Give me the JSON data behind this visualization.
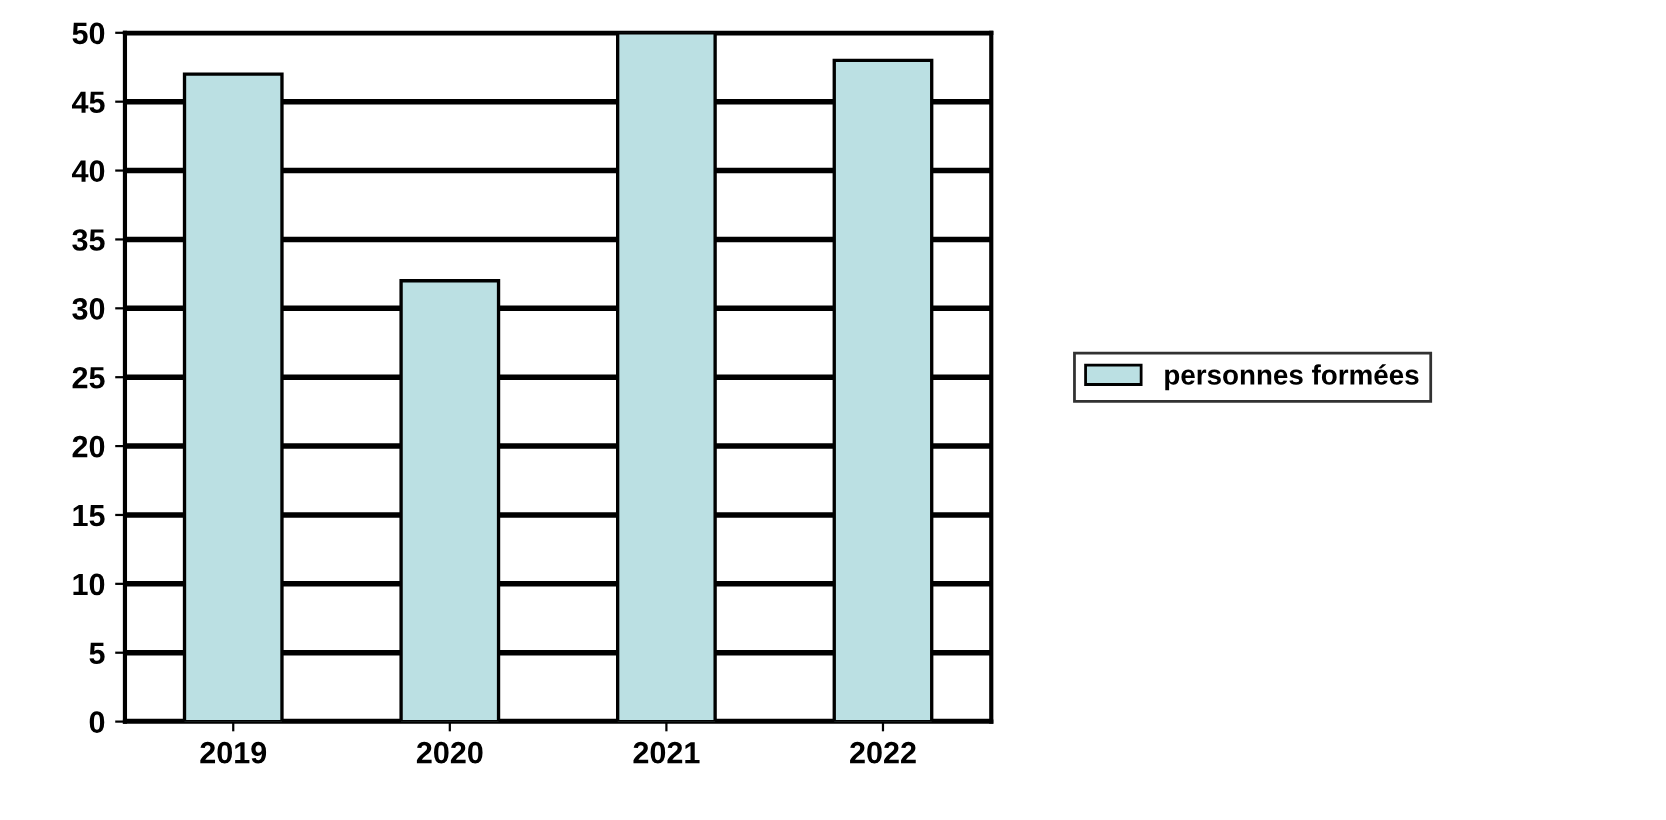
{
  "chart_data": {
    "type": "bar",
    "categories": [
      "2019",
      "2020",
      "2021",
      "2022"
    ],
    "series": [
      {
        "name": "personnes formées",
        "color": "#bbe0e3",
        "values": [
          47,
          32,
          50,
          48
        ]
      }
    ],
    "ylim": [
      0,
      50
    ],
    "yticks": [
      0,
      5,
      10,
      15,
      20,
      25,
      30,
      35,
      40,
      45,
      50
    ],
    "grid": "y",
    "legend": "right"
  }
}
